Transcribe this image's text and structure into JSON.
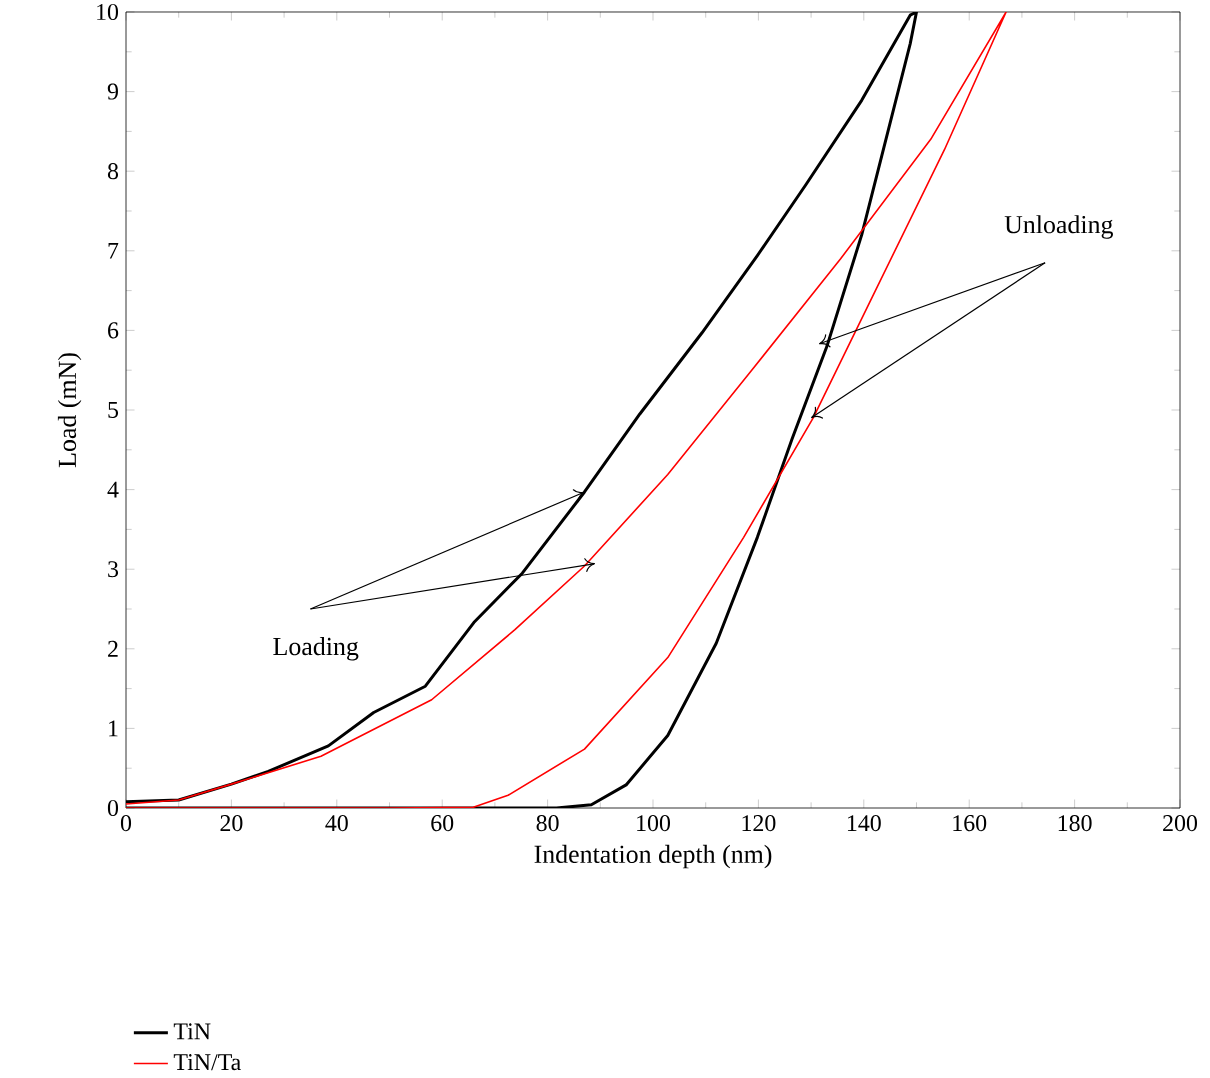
{
  "chart_data": {
    "type": "line",
    "xlabel": "Indentation depth (nm)",
    "ylabel": "Load (mN)",
    "xlim": [
      0,
      200
    ],
    "ylim": [
      0,
      10
    ],
    "xticks": [
      0,
      20,
      40,
      60,
      80,
      100,
      120,
      140,
      160,
      180,
      200
    ],
    "yticks": [
      0,
      1,
      2,
      3,
      4,
      5,
      6,
      7,
      8,
      9,
      10
    ],
    "legend": "bottom left",
    "grid": false,
    "marker": "none",
    "line_style": "solid",
    "annotations": [
      {
        "text": "Loading",
        "x": 87,
        "y": 3.97
      },
      {
        "text": "Unloading",
        "x": 131.5,
        "y": 5.83
      }
    ],
    "series": [
      {
        "name": "TiN",
        "color": "#000000",
        "x": [
          0,
          10,
          20,
          27,
          38.4,
          47,
          56.8,
          66,
          75.2,
          87,
          97.5,
          109.3,
          119.8,
          129,
          139.6,
          148.8,
          150,
          148.8,
          139.6,
          133,
          126.4,
          119.8,
          112,
          102.8,
          94.9,
          88.3,
          81.7,
          63,
          0
        ],
        "values": [
          0.08,
          0.1,
          0.3,
          0.46,
          0.78,
          1.2,
          1.53,
          2.33,
          2.95,
          3.97,
          4.95,
          5.97,
          6.94,
          7.83,
          8.89,
          9.96,
          10,
          9.6,
          7.2,
          5.8,
          4.64,
          3.4,
          2.07,
          0.91,
          0.29,
          0.04,
          0,
          0,
          0
        ]
      },
      {
        "name": "TiN/Ta",
        "color": "#ff0000",
        "x": [
          0,
          10,
          20,
          37,
          58,
          73.8,
          87,
          102.8,
          118.5,
          135.6,
          152.7,
          167,
          155.3,
          142.2,
          130.4,
          117.2,
          102.8,
          87,
          72.5,
          65.9,
          50.2,
          0
        ],
        "values": [
          0.05,
          0.1,
          0.3,
          0.65,
          1.36,
          2.24,
          3.04,
          4.19,
          5.48,
          6.9,
          8.4,
          10,
          8.27,
          6.5,
          4.9,
          3.4,
          1.89,
          0.74,
          0.16,
          0.01,
          0,
          0
        ]
      }
    ]
  }
}
